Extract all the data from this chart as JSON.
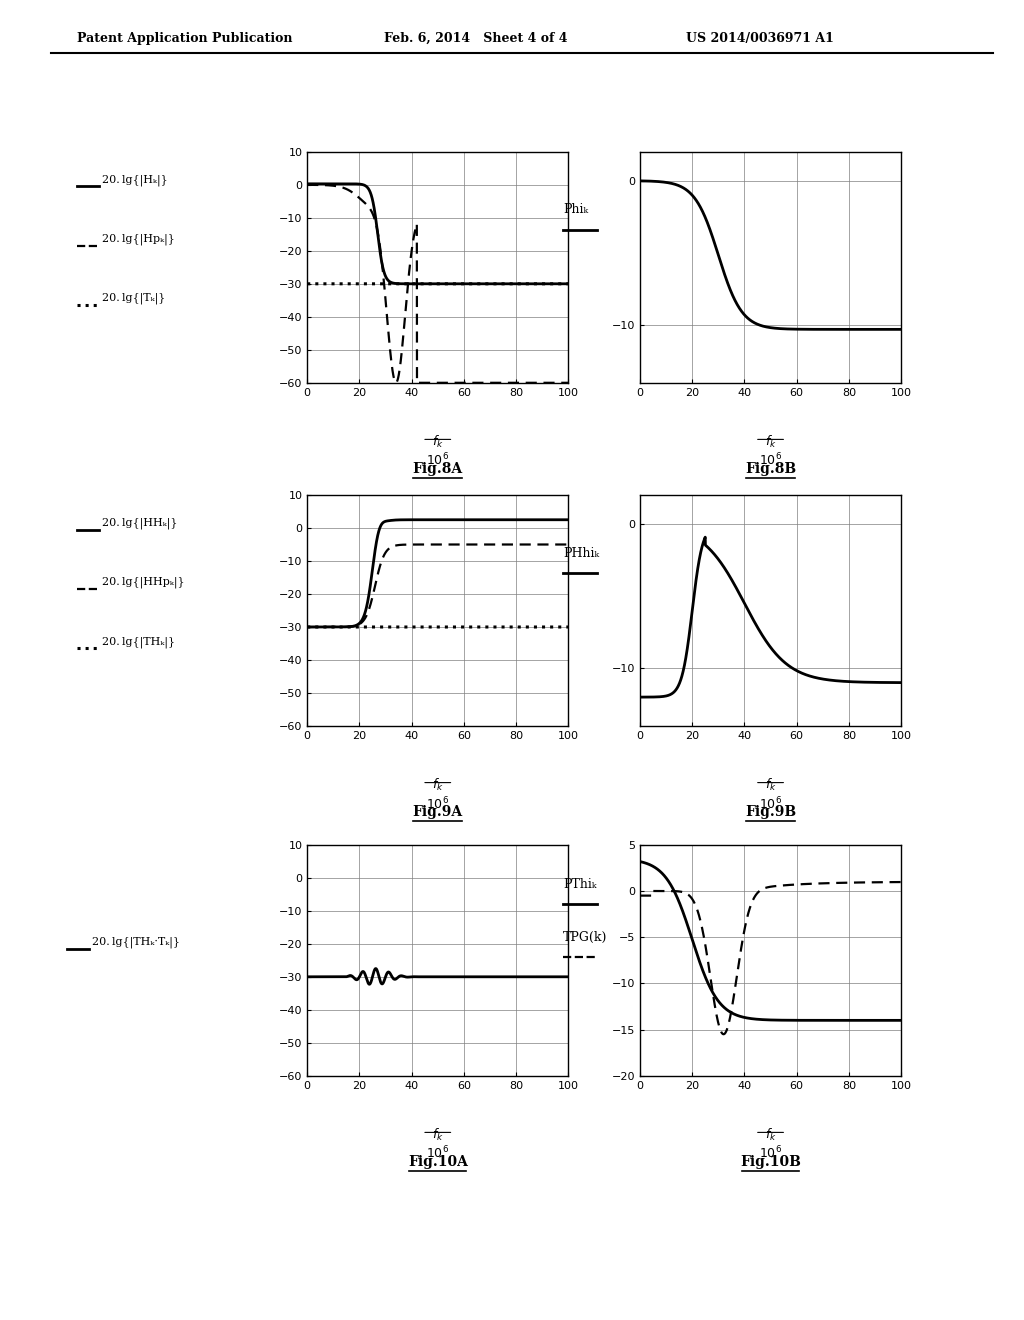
{
  "header_left": "Patent Application Publication",
  "header_mid": "Feb. 6, 2014   Sheet 4 of 4",
  "header_right": "US 2014/0036971 A1",
  "fig8A_label": "Fig.8A",
  "fig8B_label": "Fig.8B",
  "fig9A_label": "Fig.9A",
  "fig9B_label": "Fig.9B",
  "fig10A_label": "Fig.10A",
  "fig10B_label": "Fig.10B",
  "leg8A_1": "20. lg{|Hₖ|}",
  "leg8A_2": "20. lg{|Hpₖ|}",
  "leg8A_3": "20. lg{|Tₖ|}",
  "leg9A_1": "20. lg{|HHₖ|}",
  "leg9A_2": "20. lg{|HHpₖ|}",
  "leg9A_3": "20. lg{|THₖ|}",
  "leg10A_1": "20. lg{|THₖ·Tₖ|}",
  "label8B": "Phiₖ",
  "label9B": "PHhiₖ",
  "label10B_1": "PThiₖ",
  "label10B_2": "TPG(k)",
  "xlabel_top": "fₖ",
  "xlabel_bot": "10⁶",
  "xlim": [
    0,
    100
  ],
  "xticks": [
    0,
    20,
    40,
    60,
    80,
    100
  ],
  "ylim_A": [
    -60,
    10
  ],
  "yticks_A": [
    10,
    0,
    -10,
    -20,
    -30,
    -40,
    -50,
    -60
  ],
  "ylim_8B": [
    -14,
    2
  ],
  "yticks_8B": [
    0,
    -10
  ],
  "ylim_9B": [
    -14,
    2
  ],
  "yticks_9B": [
    0,
    -10
  ],
  "ylim_10B": [
    -20,
    5
  ],
  "yticks_10B": [
    5,
    0,
    -5,
    -10,
    -15,
    -20
  ]
}
